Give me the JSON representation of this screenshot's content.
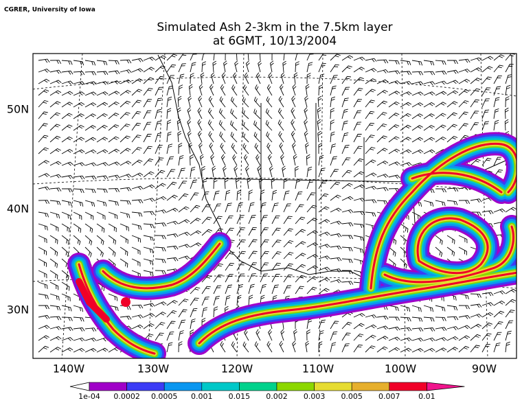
{
  "credit": "CGRER, University of Iowa",
  "title": [
    "Simulated Ash 2-3km in the 7.5km layer",
    "at 6GMT, 10/13/2004"
  ],
  "lat_labels": [
    "50N",
    "40N",
    "30N"
  ],
  "lon_labels": [
    "140W",
    "130W",
    "120W",
    "110W",
    "100W",
    "90W"
  ],
  "legend": {
    "labels": [
      "1e-04",
      "0.0002",
      "0.0005",
      "0.001",
      "0.015",
      "0.002",
      "0.003",
      "0.005",
      "0.007",
      "0.01"
    ],
    "colors": [
      "#a000c8",
      "#3c3cf5",
      "#0a96f0",
      "#00c8c8",
      "#00d28c",
      "#8cd700",
      "#e6dc32",
      "#e6af2d",
      "#f00028",
      "#f0148c"
    ]
  }
}
